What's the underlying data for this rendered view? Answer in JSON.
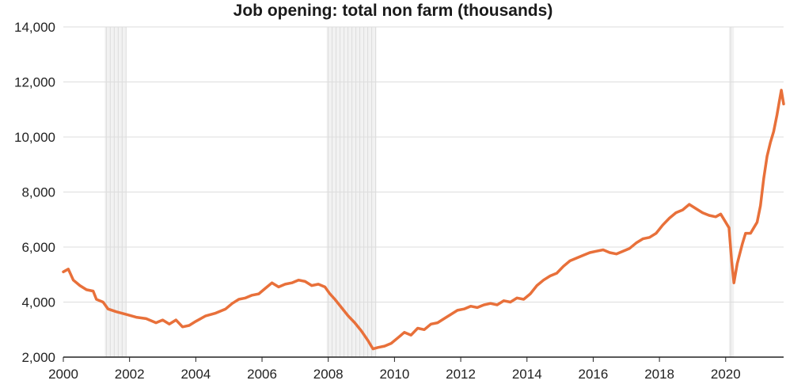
{
  "chart_data": {
    "type": "line",
    "title": "Job opening: total non farm (thousands)",
    "xlabel": "",
    "ylabel": "",
    "xlim": [
      2000,
      2021.75
    ],
    "ylim": [
      2000,
      14000
    ],
    "grid": "horizontal",
    "legend": "none",
    "x_ticks": [
      "2000",
      "2002",
      "2004",
      "2006",
      "2008",
      "2010",
      "2012",
      "2014",
      "2016",
      "2018",
      "2020"
    ],
    "y_ticks": [
      "2,000",
      "4,000",
      "6,000",
      "8,000",
      "10,000",
      "12,000",
      "14,000"
    ],
    "recessions": [
      [
        2001.25,
        2001.9
      ],
      [
        2007.95,
        2009.45
      ],
      [
        2020.1,
        2020.25
      ]
    ],
    "series": [
      {
        "color": "#E8703A",
        "points": [
          [
            2000.0,
            5100
          ],
          [
            2000.15,
            5200
          ],
          [
            2000.3,
            4800
          ],
          [
            2000.5,
            4600
          ],
          [
            2000.7,
            4450
          ],
          [
            2000.9,
            4400
          ],
          [
            2001.0,
            4100
          ],
          [
            2001.2,
            4000
          ],
          [
            2001.35,
            3750
          ],
          [
            2001.6,
            3650
          ],
          [
            2001.9,
            3550
          ],
          [
            2002.2,
            3450
          ],
          [
            2002.5,
            3400
          ],
          [
            2002.8,
            3250
          ],
          [
            2003.0,
            3350
          ],
          [
            2003.2,
            3200
          ],
          [
            2003.4,
            3350
          ],
          [
            2003.6,
            3100
          ],
          [
            2003.8,
            3150
          ],
          [
            2004.0,
            3300
          ],
          [
            2004.3,
            3500
          ],
          [
            2004.6,
            3600
          ],
          [
            2004.9,
            3750
          ],
          [
            2005.1,
            3950
          ],
          [
            2005.3,
            4100
          ],
          [
            2005.5,
            4150
          ],
          [
            2005.7,
            4250
          ],
          [
            2005.9,
            4300
          ],
          [
            2006.1,
            4500
          ],
          [
            2006.3,
            4700
          ],
          [
            2006.5,
            4550
          ],
          [
            2006.7,
            4650
          ],
          [
            2006.9,
            4700
          ],
          [
            2007.1,
            4800
          ],
          [
            2007.3,
            4750
          ],
          [
            2007.5,
            4600
          ],
          [
            2007.7,
            4650
          ],
          [
            2007.9,
            4550
          ],
          [
            2008.05,
            4300
          ],
          [
            2008.2,
            4100
          ],
          [
            2008.4,
            3800
          ],
          [
            2008.6,
            3500
          ],
          [
            2008.8,
            3250
          ],
          [
            2009.0,
            2950
          ],
          [
            2009.2,
            2600
          ],
          [
            2009.35,
            2300
          ],
          [
            2009.5,
            2350
          ],
          [
            2009.7,
            2400
          ],
          [
            2009.9,
            2500
          ],
          [
            2010.1,
            2700
          ],
          [
            2010.3,
            2900
          ],
          [
            2010.5,
            2800
          ],
          [
            2010.7,
            3050
          ],
          [
            2010.9,
            3000
          ],
          [
            2011.1,
            3200
          ],
          [
            2011.3,
            3250
          ],
          [
            2011.5,
            3400
          ],
          [
            2011.7,
            3550
          ],
          [
            2011.9,
            3700
          ],
          [
            2012.1,
            3750
          ],
          [
            2012.3,
            3850
          ],
          [
            2012.5,
            3800
          ],
          [
            2012.7,
            3900
          ],
          [
            2012.9,
            3950
          ],
          [
            2013.1,
            3900
          ],
          [
            2013.3,
            4050
          ],
          [
            2013.5,
            4000
          ],
          [
            2013.7,
            4150
          ],
          [
            2013.9,
            4100
          ],
          [
            2014.1,
            4300
          ],
          [
            2014.3,
            4600
          ],
          [
            2014.5,
            4800
          ],
          [
            2014.7,
            4950
          ],
          [
            2014.9,
            5050
          ],
          [
            2015.1,
            5300
          ],
          [
            2015.3,
            5500
          ],
          [
            2015.5,
            5600
          ],
          [
            2015.7,
            5700
          ],
          [
            2015.9,
            5800
          ],
          [
            2016.1,
            5850
          ],
          [
            2016.3,
            5900
          ],
          [
            2016.5,
            5800
          ],
          [
            2016.7,
            5750
          ],
          [
            2016.9,
            5850
          ],
          [
            2017.1,
            5950
          ],
          [
            2017.3,
            6150
          ],
          [
            2017.5,
            6300
          ],
          [
            2017.7,
            6350
          ],
          [
            2017.9,
            6500
          ],
          [
            2018.1,
            6800
          ],
          [
            2018.3,
            7050
          ],
          [
            2018.5,
            7250
          ],
          [
            2018.7,
            7350
          ],
          [
            2018.9,
            7550
          ],
          [
            2019.1,
            7400
          ],
          [
            2019.3,
            7250
          ],
          [
            2019.5,
            7150
          ],
          [
            2019.7,
            7100
          ],
          [
            2019.85,
            7200
          ],
          [
            2020.0,
            6900
          ],
          [
            2020.1,
            6700
          ],
          [
            2020.18,
            5500
          ],
          [
            2020.25,
            4700
          ],
          [
            2020.35,
            5400
          ],
          [
            2020.5,
            6100
          ],
          [
            2020.6,
            6500
          ],
          [
            2020.75,
            6500
          ],
          [
            2020.85,
            6700
          ],
          [
            2020.95,
            6900
          ],
          [
            2021.05,
            7500
          ],
          [
            2021.15,
            8500
          ],
          [
            2021.25,
            9300
          ],
          [
            2021.35,
            9800
          ],
          [
            2021.45,
            10200
          ],
          [
            2021.55,
            10800
          ],
          [
            2021.62,
            11300
          ],
          [
            2021.68,
            11700
          ],
          [
            2021.75,
            11200
          ]
        ]
      }
    ]
  }
}
